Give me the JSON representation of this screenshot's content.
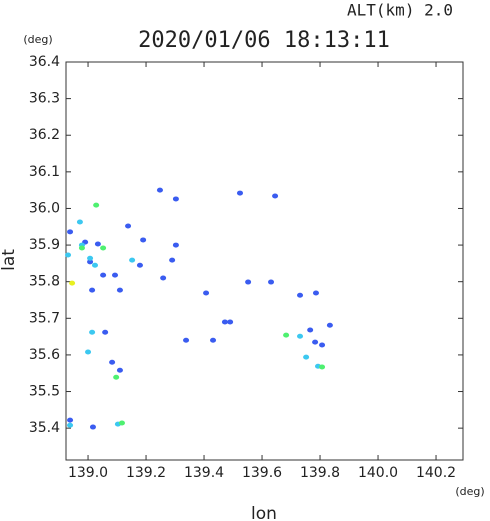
{
  "chart_data": {
    "type": "scatter",
    "title": "2020/01/06 18:13:11",
    "subtitle": "ALT(km) 2.0",
    "x_label": "lon",
    "y_label": "lat",
    "x_unit": "(deg)",
    "y_unit": "(deg)",
    "xlim": [
      138.924,
      140.293
    ],
    "ylim": [
      35.313,
      36.4
    ],
    "xticks": [
      {
        "value": 139,
        "label": "139.0"
      },
      139.2,
      139.4,
      139.6,
      139.8,
      {
        "value": 140,
        "label": "140.0"
      },
      140.2
    ],
    "yticks": [
      36.4,
      36.3,
      36.2,
      36.1,
      {
        "value": 36,
        "label": "36.0"
      },
      35.9,
      35.8,
      35.7,
      35.6,
      35.5,
      35.4
    ],
    "series": [
      {
        "color": "#3a5cf0",
        "x": [
          138.938,
          138.99,
          139.034,
          139.007,
          139.052,
          139.014,
          139.11,
          139.093,
          139.19,
          139.179,
          139.259,
          139.303,
          139.29,
          139.407,
          139.431,
          139.49,
          139.631,
          139.731,
          139.786,
          139.766,
          139.807,
          139.834,
          139.783,
          139.645,
          139.083,
          139.11,
          139.017,
          138.938,
          139.059,
          139.338,
          139.552,
          139.303,
          139.248,
          139.138,
          139.524,
          139.472
        ],
        "values": [
          35.936,
          35.908,
          35.903,
          35.854,
          35.818,
          35.777,
          35.777,
          35.818,
          35.914,
          35.845,
          35.81,
          35.9,
          35.859,
          35.769,
          35.64,
          35.69,
          35.799,
          35.763,
          35.769,
          35.668,
          35.627,
          35.681,
          35.635,
          36.034,
          35.58,
          35.558,
          35.403,
          35.422,
          35.662,
          35.64,
          35.799,
          36.026,
          36.05,
          35.952,
          36.042,
          35.69
        ]
      },
      {
        "color": "#3cc8f0",
        "x": [
          138.972,
          138.979,
          139.007,
          139.024,
          139.014,
          139.0,
          138.938,
          139.103,
          139.752,
          139.731,
          139.793,
          139.152,
          138.931
        ],
        "values": [
          35.963,
          35.9,
          35.864,
          35.845,
          35.662,
          35.608,
          35.408,
          35.411,
          35.594,
          35.651,
          35.569,
          35.859,
          35.873
        ]
      },
      {
        "color": "#4ef070",
        "x": [
          139.028,
          138.979,
          139.117,
          139.097,
          139.807,
          139.683,
          139.052
        ],
        "values": [
          36.009,
          35.892,
          35.414,
          35.539,
          35.567,
          35.654,
          35.892
        ]
      },
      {
        "color": "#e8f020",
        "x": [
          138.945
        ],
        "values": [
          35.796
        ]
      }
    ]
  }
}
